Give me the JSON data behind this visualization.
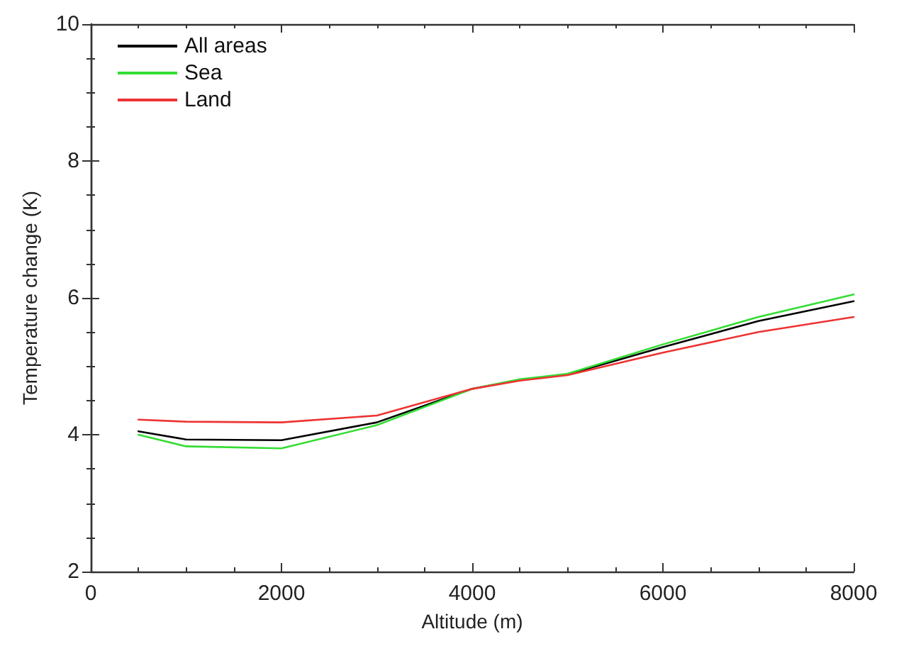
{
  "chart_data": {
    "type": "line",
    "xlabel": "Altitude (m)",
    "ylabel": "Temperature change (K)",
    "x": [
      500,
      1000,
      2000,
      3000,
      4000,
      4500,
      5000,
      6000,
      7000,
      8000
    ],
    "series": [
      {
        "name": "All areas",
        "color": "#000000",
        "values": [
          4.05,
          3.93,
          3.92,
          4.18,
          4.67,
          4.8,
          4.88,
          5.28,
          5.66,
          5.95
        ]
      },
      {
        "name": "Sea",
        "color": "#33dd33",
        "values": [
          4.0,
          3.83,
          3.8,
          4.14,
          4.67,
          4.81,
          4.89,
          5.32,
          5.72,
          6.05
        ]
      },
      {
        "name": "Land",
        "color": "#ee3333",
        "values": [
          4.22,
          4.19,
          4.18,
          4.28,
          4.67,
          4.79,
          4.87,
          5.2,
          5.5,
          5.72
        ]
      }
    ],
    "xlim": [
      0,
      8000
    ],
    "xticks": [
      0,
      2000,
      4000,
      6000,
      8000
    ],
    "ylim": [
      2,
      10
    ],
    "yticks": [
      2,
      4,
      6,
      8,
      10
    ],
    "grid": false,
    "legend": "top left",
    "marker": "none",
    "line_style": "solid"
  }
}
